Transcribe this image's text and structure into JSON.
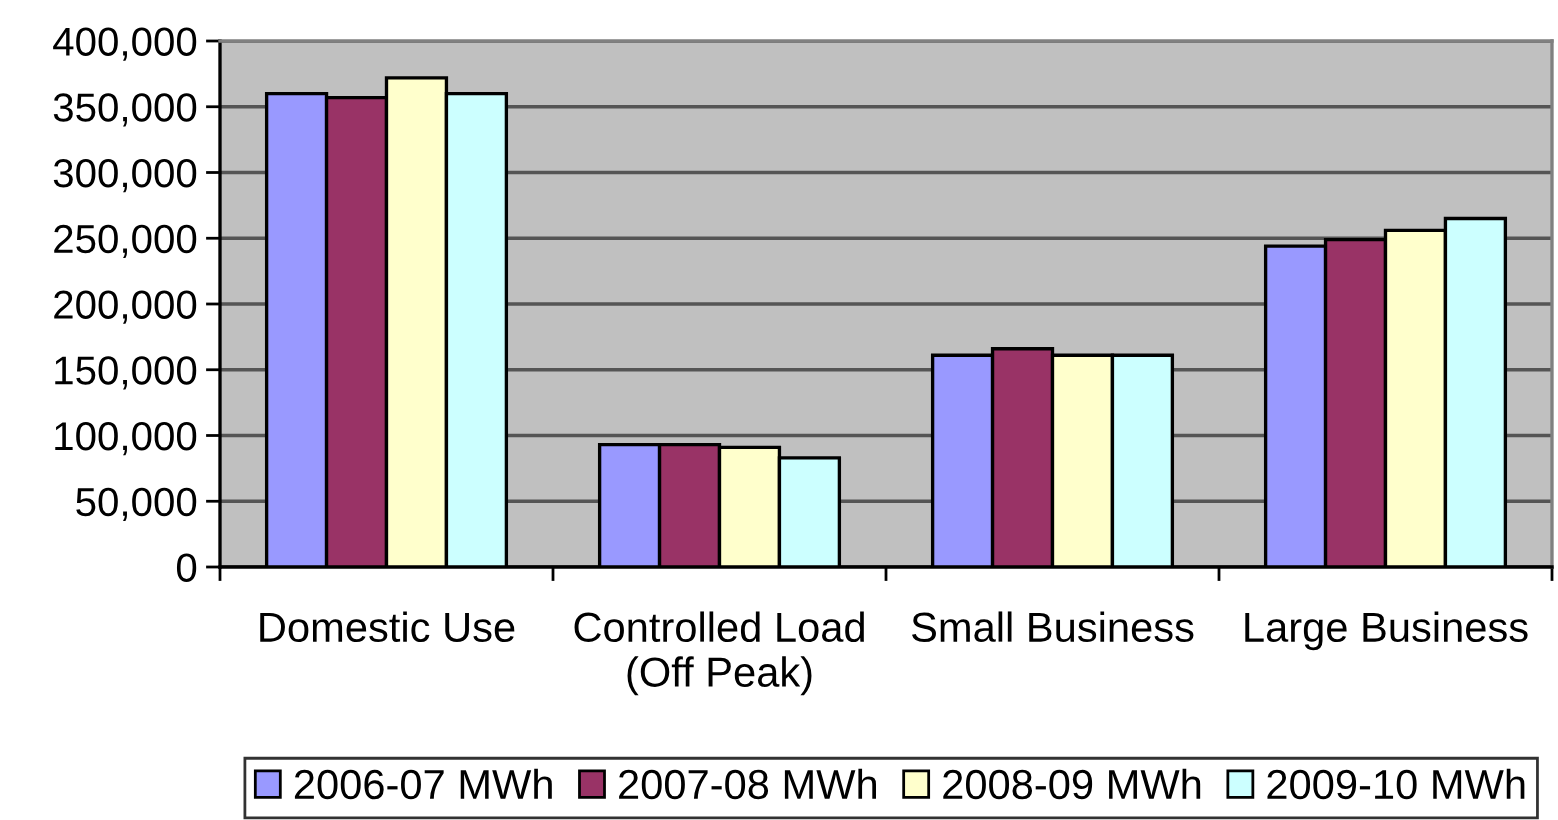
{
  "chart_data": {
    "type": "bar",
    "categories": [
      "Domestic Use",
      "Controlled Load\n(Off Peak)",
      "Small Business",
      "Large Business"
    ],
    "series": [
      {
        "name": "2006-07 MWh",
        "color": "#9999ff",
        "values": [
          360000,
          93000,
          161000,
          244000
        ]
      },
      {
        "name": "2007-08 MWh",
        "color": "#993366",
        "values": [
          357000,
          93000,
          166000,
          249000
        ]
      },
      {
        "name": "2008-09 MWh",
        "color": "#ffffcc",
        "values": [
          372000,
          91000,
          161000,
          256000
        ]
      },
      {
        "name": "2009-10 MWh",
        "color": "#ccffff",
        "values": [
          360000,
          83000,
          161000,
          265000
        ]
      }
    ],
    "ylim": [
      0,
      400000
    ],
    "yticks": [
      {
        "value": 0,
        "label": "0"
      },
      {
        "value": 50000,
        "label": "50,000"
      },
      {
        "value": 100000,
        "label": "100,000"
      },
      {
        "value": 150000,
        "label": "150,000"
      },
      {
        "value": 200000,
        "label": "200,000"
      },
      {
        "value": 250000,
        "label": "250,000"
      },
      {
        "value": 300000,
        "label": "300,000"
      },
      {
        "value": 350000,
        "label": "350,000"
      },
      {
        "value": 400000,
        "label": "400,000"
      }
    ],
    "grid": "y",
    "legend": "bottom"
  }
}
